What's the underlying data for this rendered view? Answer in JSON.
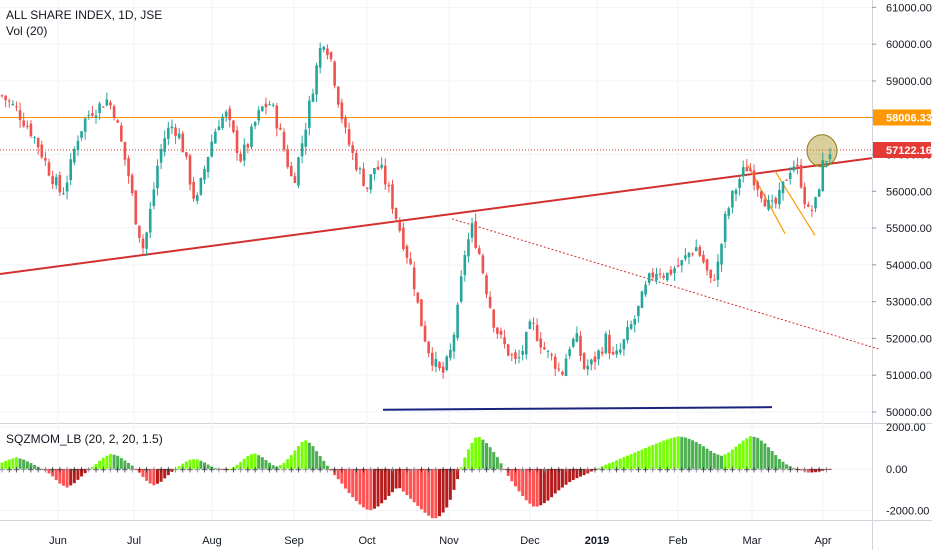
{
  "symbol": "ALL SHARE INDEX, 1D, JSE",
  "vol_label": "Vol (20)",
  "indicator_label": "SQZMOM_LB (20, 2, 20, 1.5)",
  "colors": {
    "up": "#26a69a",
    "down": "#ef5350",
    "trendline": "#d32f2f",
    "support": "#1a237e",
    "resistance": "#ff9800",
    "current_price": "#e53935",
    "mom_bright_green": "#76ff03",
    "mom_dark_green": "#4caf50",
    "mom_bright_red": "#ff5252",
    "mom_dark_red": "#b71c1c"
  },
  "chart_data": [
    {
      "type": "candlestick",
      "title": "ALL SHARE INDEX, 1D, JSE",
      "ylim": [
        49700,
        61200
      ],
      "y_ticks": [
        "61000.00",
        "60000.00",
        "59000.00",
        "58000.00",
        "57000.00",
        "56000.00",
        "55000.00",
        "54000.00",
        "53000.00",
        "52000.00",
        "51000.00",
        "50000.00"
      ],
      "x_ticks": [
        "Jun",
        "Jul",
        "Aug",
        "Sep",
        "Oct",
        "Nov",
        "Dec",
        "2019",
        "Feb",
        "Mar",
        "Apr"
      ],
      "price_labels": [
        {
          "value": 58006.33,
          "text": "58006.33",
          "kind": "resistance"
        },
        {
          "value": 57122.16,
          "text": "57122.16",
          "kind": "current"
        }
      ],
      "close_path": [
        58600,
        58400,
        58200,
        57900,
        57600,
        57200,
        56700,
        56300,
        55900,
        56500,
        57400,
        57900,
        58200,
        58300,
        58500,
        58200,
        57300,
        56400,
        55200,
        54400,
        55600,
        56900,
        57600,
        57800,
        57400,
        56500,
        55600,
        56500,
        57300,
        57900,
        58100,
        57500,
        56900,
        57300,
        57900,
        58300,
        58400,
        57800,
        57000,
        56200,
        57100,
        58100,
        59200,
        60200,
        59700,
        58600,
        57600,
        57000,
        56500,
        56100,
        56700,
        56500,
        55900,
        55200,
        54500,
        53800,
        52600,
        51800,
        51300,
        51000,
        51500,
        52600,
        54300,
        55000,
        54300,
        53300,
        52400,
        51900,
        51600,
        51300,
        51800,
        52400,
        52000,
        51600,
        51400,
        51000,
        51800,
        52000,
        51200,
        51300,
        51600,
        52000,
        51400,
        51700,
        52200,
        52600,
        53200,
        53700,
        53900,
        53700,
        53900,
        54000,
        54300,
        54500,
        54100,
        53500,
        54000,
        55300,
        55900,
        56400,
        56700,
        56300,
        55900,
        55500,
        55700,
        56300,
        56800,
        56400,
        55400,
        55600,
        56700,
        57100
      ]
    },
    {
      "type": "histogram",
      "title": "SQZMOM_LB (20, 2, 20, 1.5)",
      "ylim": [
        -2450,
        2150
      ],
      "y_ticks": [
        "2000.00",
        "0.00",
        "-2000.00"
      ],
      "momentum": [
        300,
        450,
        550,
        450,
        280,
        100,
        -80,
        -350,
        -700,
        -900,
        -700,
        -380,
        -60,
        220,
        520,
        720,
        640,
        420,
        180,
        -150,
        -550,
        -800,
        -650,
        -330,
        -20,
        230,
        430,
        480,
        330,
        130,
        -30,
        -60,
        40,
        290,
        590,
        760,
        600,
        330,
        90,
        230,
        580,
        1030,
        1410,
        1180,
        700,
        240,
        -220,
        -610,
        -1080,
        -1470,
        -1800,
        -2010,
        -1870,
        -1570,
        -1200,
        -850,
        -1170,
        -1520,
        -1860,
        -2180,
        -2420,
        -2220,
        -1740,
        -790,
        320,
        1110,
        1600,
        1350,
        960,
        460,
        -180,
        -690,
        -1170,
        -1580,
        -1850,
        -1720,
        -1480,
        -1120,
        -850,
        -590,
        -420,
        -280,
        -100,
        60,
        220,
        350,
        510,
        650,
        800,
        940,
        1090,
        1230,
        1370,
        1480,
        1560,
        1500,
        1360,
        1180,
        950,
        740,
        620,
        800,
        1080,
        1370,
        1580,
        1480,
        1210,
        840,
        460,
        210,
        40,
        -70,
        -180,
        -160,
        -90,
        -20
      ]
    }
  ]
}
